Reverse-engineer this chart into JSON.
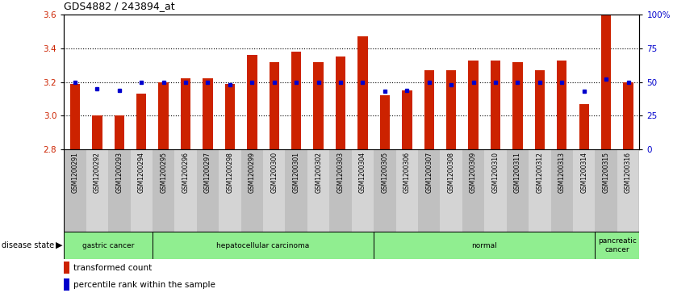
{
  "title": "GDS4882 / 243894_at",
  "samples": [
    "GSM1200291",
    "GSM1200292",
    "GSM1200293",
    "GSM1200294",
    "GSM1200295",
    "GSM1200296",
    "GSM1200297",
    "GSM1200298",
    "GSM1200299",
    "GSM1200300",
    "GSM1200301",
    "GSM1200302",
    "GSM1200303",
    "GSM1200304",
    "GSM1200305",
    "GSM1200306",
    "GSM1200307",
    "GSM1200308",
    "GSM1200309",
    "GSM1200310",
    "GSM1200311",
    "GSM1200312",
    "GSM1200313",
    "GSM1200314",
    "GSM1200315",
    "GSM1200316"
  ],
  "red_values": [
    3.19,
    3.0,
    3.0,
    3.13,
    3.2,
    3.22,
    3.22,
    3.19,
    3.36,
    3.32,
    3.38,
    3.32,
    3.35,
    3.47,
    3.12,
    3.15,
    3.27,
    3.27,
    3.33,
    3.33,
    3.32,
    3.27,
    3.33,
    3.07,
    3.6,
    3.2
  ],
  "blue_pct": [
    50,
    45,
    44,
    50,
    50,
    50,
    50,
    48,
    50,
    50,
    50,
    50,
    50,
    50,
    43,
    44,
    50,
    48,
    50,
    50,
    50,
    50,
    50,
    43,
    52,
    50
  ],
  "ymin": 2.8,
  "ymax": 3.6,
  "y2min": 0,
  "y2max": 100,
  "yticks_left": [
    2.8,
    3.0,
    3.2,
    3.4,
    3.6
  ],
  "yticks_right": [
    0,
    25,
    50,
    75,
    100
  ],
  "grid_lines": [
    3.0,
    3.2,
    3.4
  ],
  "bar_color": "#cc2200",
  "dot_color": "#0000cc",
  "bar_bottom": 2.8,
  "groups": [
    {
      "label": "gastric cancer",
      "start": 0,
      "end": 4
    },
    {
      "label": "hepatocellular carcinoma",
      "start": 4,
      "end": 14
    },
    {
      "label": "normal",
      "start": 14,
      "end": 24
    },
    {
      "label": "pancreatic\ncancer",
      "start": 24,
      "end": 26
    }
  ],
  "group_color": "#90ee90",
  "group_border_color": "#000000",
  "tick_bg_even": "#c0c0c0",
  "tick_bg_odd": "#d4d4d4",
  "left_axis_color": "#cc2200",
  "right_axis_color": "#0000cc",
  "title_fontsize": 9,
  "bar_width": 0.45
}
